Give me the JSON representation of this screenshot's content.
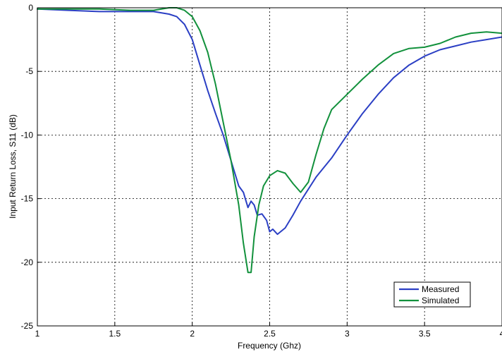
{
  "chart_data": {
    "type": "line",
    "xlabel": "Frequency (Ghz)",
    "ylabel": "Input Return Loss, S11 (dB)",
    "xlim": [
      1,
      4
    ],
    "ylim": [
      -25,
      0
    ],
    "x_ticks": [
      1,
      1.5,
      2,
      2.5,
      3,
      3.5,
      4
    ],
    "x_tick_labels": [
      "1",
      "1.5",
      "2",
      "2.5",
      "3",
      "3.5",
      "4"
    ],
    "y_ticks": [
      0,
      -5,
      -10,
      -15,
      -20,
      -25
    ],
    "y_tick_labels": [
      "0",
      "-5",
      "-10",
      "-15",
      "-20",
      "-25"
    ],
    "grid": true,
    "legend_position": "bottom-right",
    "series": [
      {
        "name": "Measured",
        "color": "#2b3fc4",
        "points": [
          [
            1.0,
            -0.1
          ],
          [
            1.2,
            -0.2
          ],
          [
            1.4,
            -0.3
          ],
          [
            1.6,
            -0.3
          ],
          [
            1.75,
            -0.3
          ],
          [
            1.85,
            -0.5
          ],
          [
            1.9,
            -0.7
          ],
          [
            1.95,
            -1.3
          ],
          [
            2.0,
            -2.5
          ],
          [
            2.05,
            -4.5
          ],
          [
            2.1,
            -6.5
          ],
          [
            2.15,
            -8.3
          ],
          [
            2.2,
            -10.0
          ],
          [
            2.25,
            -12.0
          ],
          [
            2.3,
            -14.0
          ],
          [
            2.33,
            -14.5
          ],
          [
            2.36,
            -15.7
          ],
          [
            2.38,
            -15.2
          ],
          [
            2.4,
            -15.5
          ],
          [
            2.42,
            -16.3
          ],
          [
            2.45,
            -16.2
          ],
          [
            2.48,
            -16.7
          ],
          [
            2.5,
            -17.6
          ],
          [
            2.52,
            -17.4
          ],
          [
            2.55,
            -17.8
          ],
          [
            2.6,
            -17.3
          ],
          [
            2.65,
            -16.3
          ],
          [
            2.7,
            -15.2
          ],
          [
            2.8,
            -13.3
          ],
          [
            2.9,
            -11.8
          ],
          [
            3.0,
            -10.0
          ],
          [
            3.1,
            -8.3
          ],
          [
            3.2,
            -6.8
          ],
          [
            3.3,
            -5.5
          ],
          [
            3.4,
            -4.5
          ],
          [
            3.5,
            -3.8
          ],
          [
            3.6,
            -3.3
          ],
          [
            3.7,
            -3.0
          ],
          [
            3.8,
            -2.7
          ],
          [
            3.9,
            -2.5
          ],
          [
            4.0,
            -2.3
          ]
        ]
      },
      {
        "name": "Simulated",
        "color": "#12913c",
        "points": [
          [
            1.0,
            -0.1
          ],
          [
            1.4,
            -0.1
          ],
          [
            1.6,
            -0.2
          ],
          [
            1.75,
            -0.2
          ],
          [
            1.85,
            0.0
          ],
          [
            1.9,
            0.0
          ],
          [
            1.95,
            -0.2
          ],
          [
            2.0,
            -0.7
          ],
          [
            2.05,
            -1.8
          ],
          [
            2.1,
            -3.5
          ],
          [
            2.15,
            -6.0
          ],
          [
            2.2,
            -9.0
          ],
          [
            2.25,
            -12.0
          ],
          [
            2.3,
            -15.5
          ],
          [
            2.33,
            -18.5
          ],
          [
            2.36,
            -20.8
          ],
          [
            2.38,
            -20.8
          ],
          [
            2.4,
            -18.0
          ],
          [
            2.43,
            -15.5
          ],
          [
            2.46,
            -14.0
          ],
          [
            2.5,
            -13.2
          ],
          [
            2.55,
            -12.8
          ],
          [
            2.6,
            -13.0
          ],
          [
            2.65,
            -13.8
          ],
          [
            2.7,
            -14.5
          ],
          [
            2.75,
            -13.7
          ],
          [
            2.8,
            -11.5
          ],
          [
            2.85,
            -9.5
          ],
          [
            2.9,
            -8.0
          ],
          [
            3.0,
            -6.8
          ],
          [
            3.1,
            -5.6
          ],
          [
            3.2,
            -4.5
          ],
          [
            3.3,
            -3.6
          ],
          [
            3.4,
            -3.2
          ],
          [
            3.5,
            -3.1
          ],
          [
            3.6,
            -2.8
          ],
          [
            3.7,
            -2.3
          ],
          [
            3.8,
            -2.0
          ],
          [
            3.9,
            -1.9
          ],
          [
            4.0,
            -2.0
          ]
        ]
      }
    ]
  }
}
